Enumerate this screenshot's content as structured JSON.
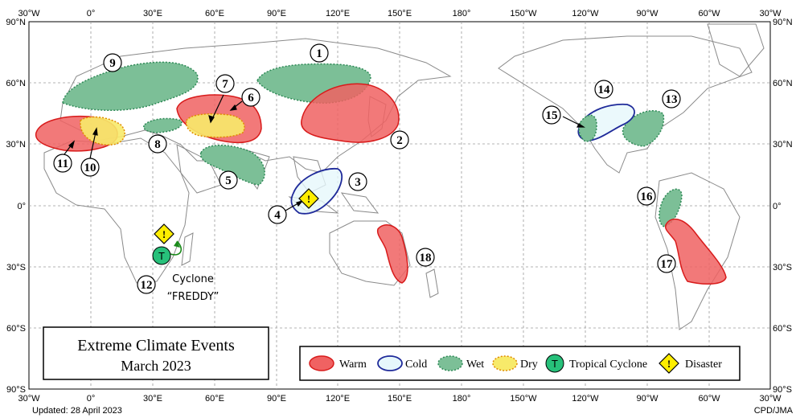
{
  "map": {
    "lon_labels": [
      "30°W",
      "0°",
      "30°E",
      "60°E",
      "90°E",
      "120°E",
      "150°E",
      "180°",
      "150°W",
      "120°W",
      "90°W",
      "60°W",
      "30°W"
    ],
    "lat_labels": [
      "90°N",
      "60°N",
      "30°N",
      "0°",
      "30°S",
      "60°S",
      "90°S"
    ],
    "title_line1": "Extreme Climate Events",
    "title_line2": "March 2023",
    "updated": "Updated:  28 April 2023",
    "credit": "CPD/JMA",
    "colors": {
      "warm_fill": "#f06262",
      "warm_stroke": "#d81b1b",
      "cold_fill": "#e6f7fb",
      "cold_stroke": "#1f2a9a",
      "wet_fill": "#7cbf97",
      "wet_stroke": "#2f8a57",
      "dry_fill": "#f7ea6a",
      "dry_stroke": "#e08a00",
      "tc_fill": "#27c07a",
      "disaster_fill": "#ffee00",
      "land_line": "#8a8a8a",
      "grid": "#9a9a9a"
    }
  },
  "regions": [
    {
      "id": "1",
      "category": "wet"
    },
    {
      "id": "2",
      "category": "warm"
    },
    {
      "id": "3",
      "category": "cold"
    },
    {
      "id": "4",
      "category": "disaster"
    },
    {
      "id": "5",
      "category": "wet"
    },
    {
      "id": "6",
      "category": "warm"
    },
    {
      "id": "7",
      "category": "dry"
    },
    {
      "id": "8",
      "category": "wet"
    },
    {
      "id": "9",
      "category": "wet"
    },
    {
      "id": "10",
      "category": "dry"
    },
    {
      "id": "11",
      "category": "warm"
    },
    {
      "id": "12",
      "category": "tropical-cyclone"
    },
    {
      "id": "13",
      "category": "wet"
    },
    {
      "id": "14",
      "category": "cold"
    },
    {
      "id": "15",
      "category": "wet"
    },
    {
      "id": "16",
      "category": "wet"
    },
    {
      "id": "17",
      "category": "warm"
    },
    {
      "id": "18",
      "category": "warm"
    }
  ],
  "cyclone": {
    "line1": "Cyclone",
    "line2": "“FREDDY”",
    "symbol": "T",
    "disaster_symbol": "!"
  },
  "legend": {
    "warm": "Warm",
    "cold": "Cold",
    "wet": "Wet",
    "dry": "Dry",
    "tc_symbol": "T",
    "tc": "Tropical  Cyclone",
    "disaster_symbol": "!",
    "disaster": "Disaster"
  }
}
